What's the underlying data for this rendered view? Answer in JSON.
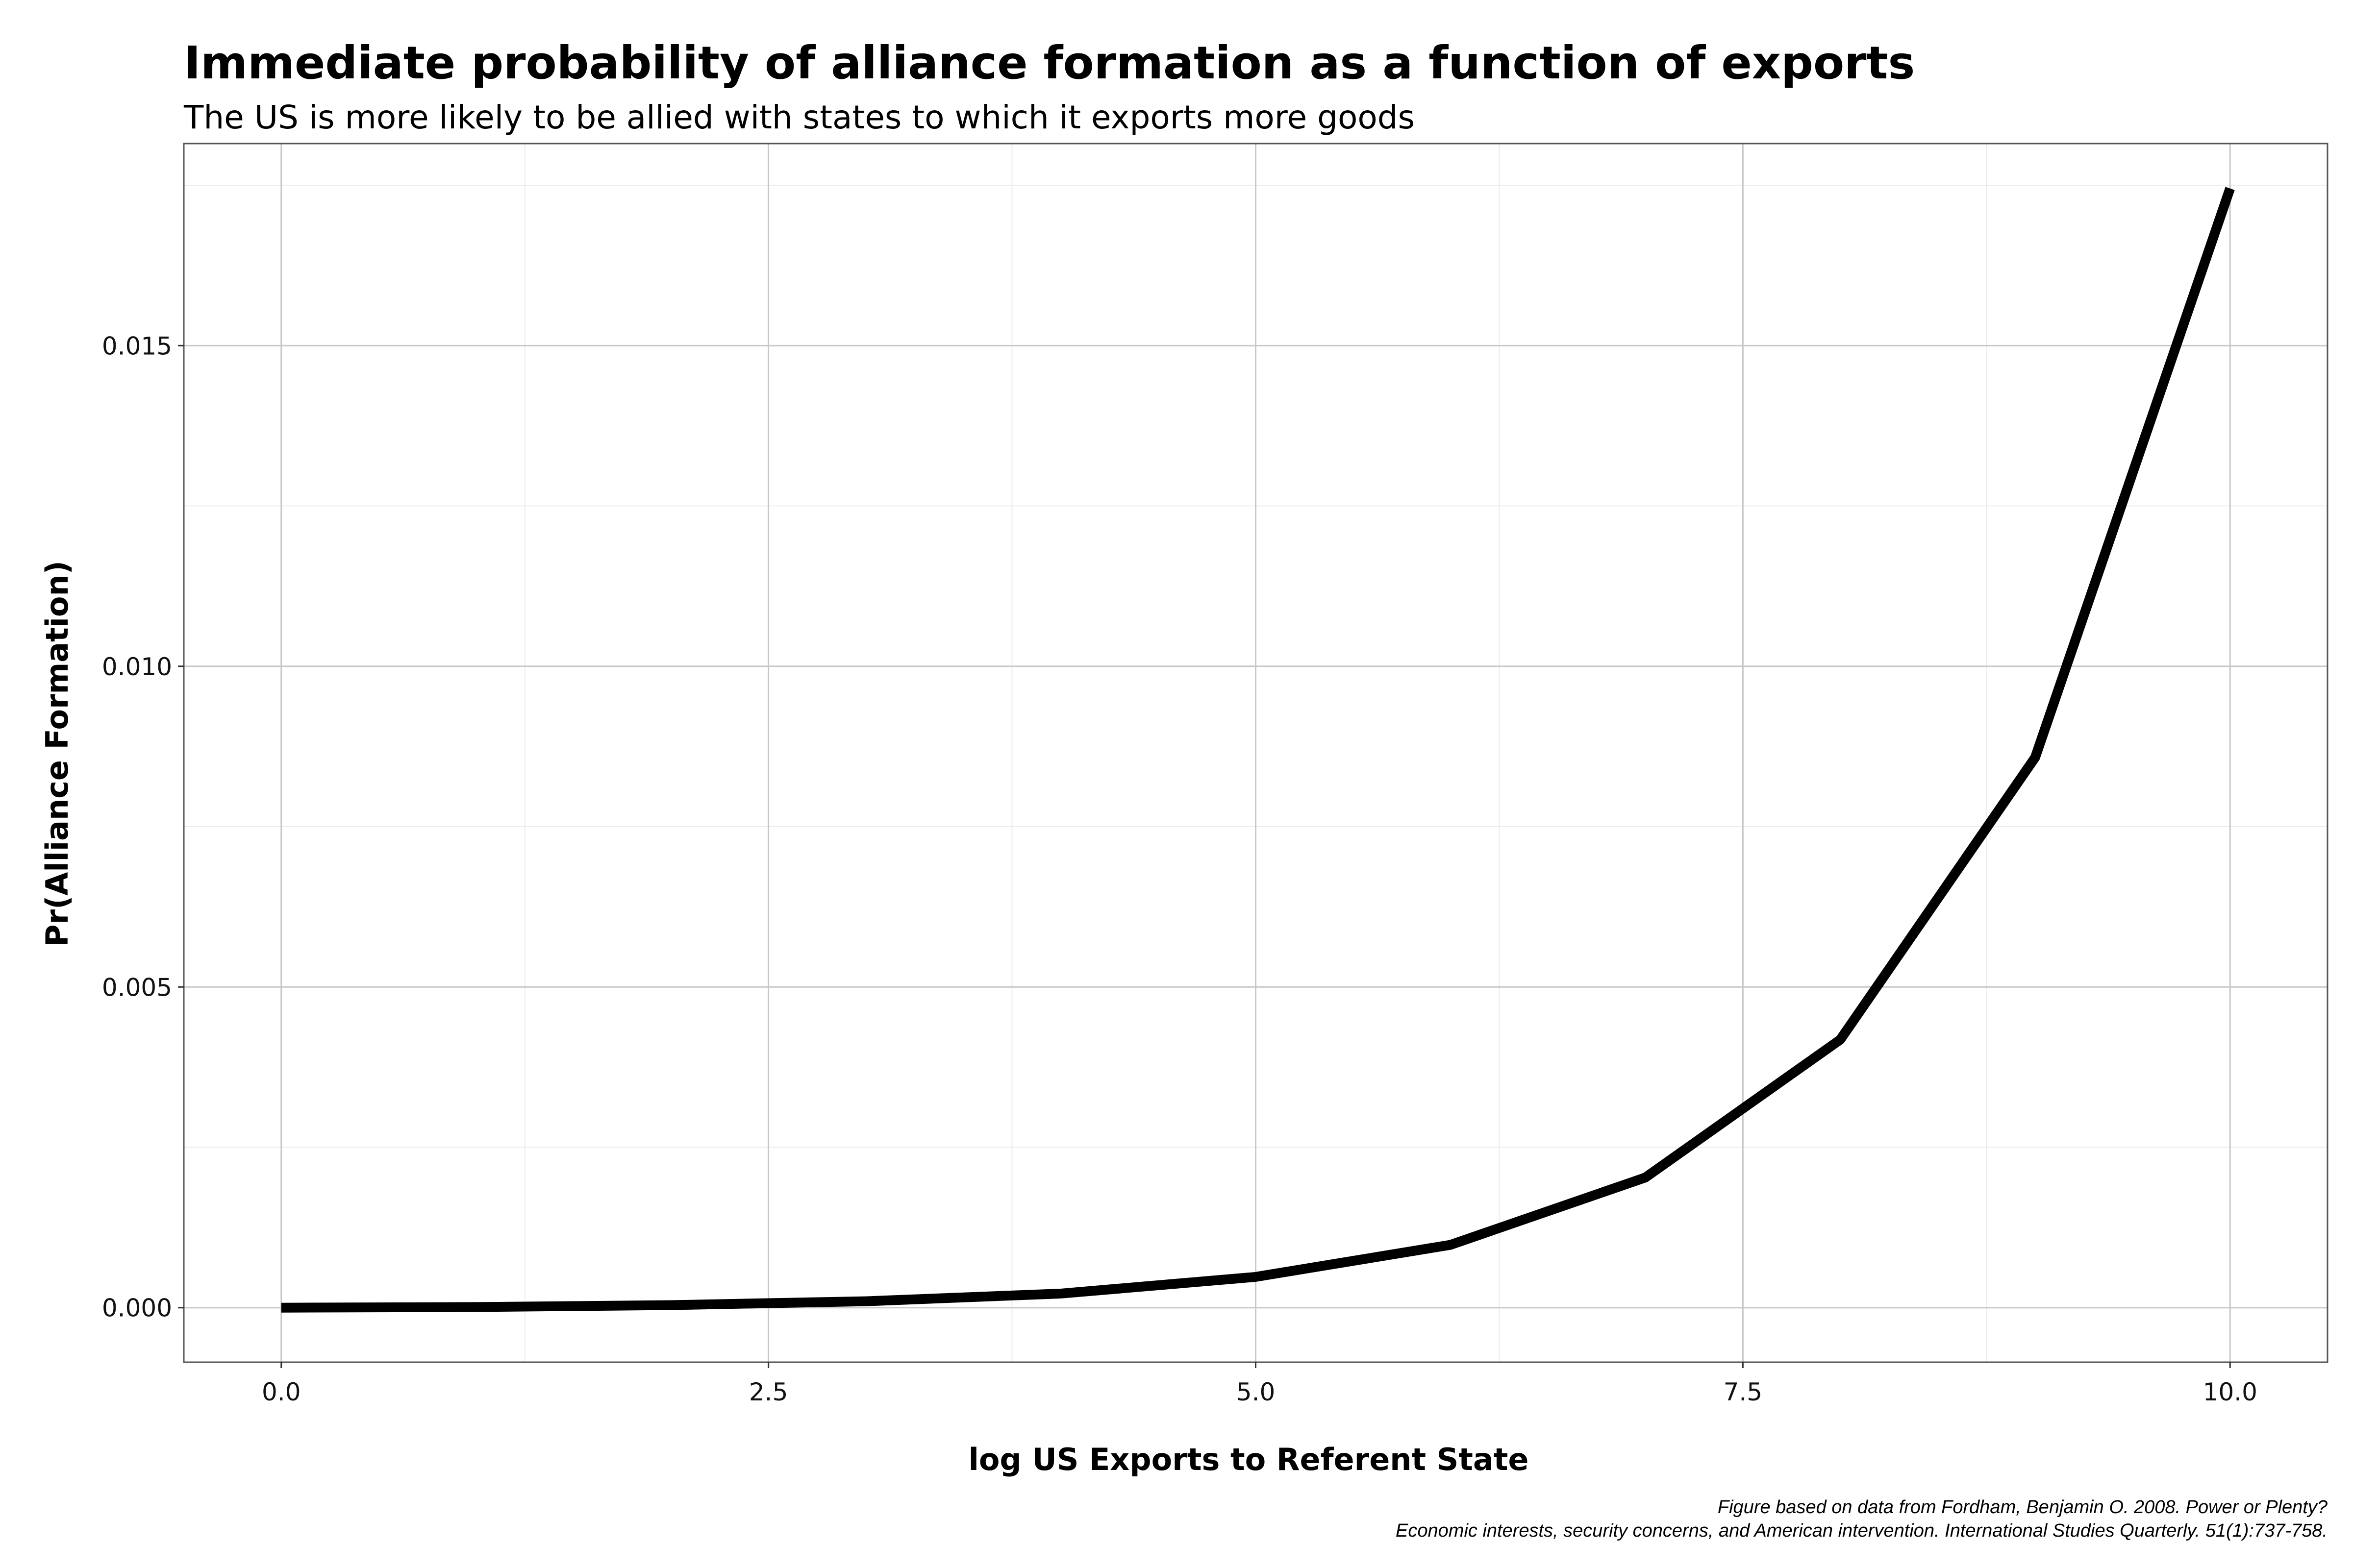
{
  "chart_data": {
    "type": "line",
    "title": "Immediate probability of alliance formation as a function of exports",
    "subtitle": "The US is more likely to be allied with states to which it exports more goods",
    "xlabel": "log US Exports to Referent State",
    "ylabel": "Pr(Alliance Formation)",
    "xlim": [
      -0.5,
      10.5
    ],
    "ylim": [
      -0.00085,
      0.01815
    ],
    "x_ticks": [
      0.0,
      2.5,
      5.0,
      7.5,
      10.0
    ],
    "x_tick_labels": [
      "0.0",
      "2.5",
      "5.0",
      "7.5",
      "10.0"
    ],
    "y_ticks": [
      0.0,
      0.005,
      0.01,
      0.015
    ],
    "y_tick_labels": [
      "0.000",
      "0.005",
      "0.010",
      "0.015"
    ],
    "grid": true,
    "series": [
      {
        "x": [
          0,
          1,
          2,
          3,
          4,
          5,
          6,
          7,
          8,
          9,
          10
        ],
        "y": [
          0.0,
          1e-05,
          4e-05,
          0.0001,
          0.00022,
          0.00048,
          0.00098,
          0.00203,
          0.00418,
          0.00858,
          0.01745
        ],
        "color": "#000000"
      }
    ],
    "caption": [
      "Figure based on data from Fordham, Benjamin O. 2008. Power or Plenty?",
      "Economic interests, security concerns, and American intervention. International Studies Quarterly. 51(1):737-758."
    ]
  }
}
